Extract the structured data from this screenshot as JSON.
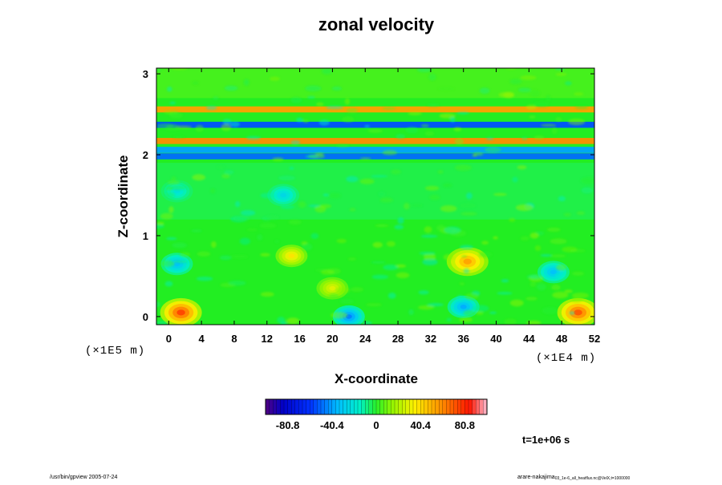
{
  "chart_data": {
    "type": "heatmap",
    "title": "zonal velocity",
    "xlabel": "X-coordinate",
    "ylabel": "Z-coordinate",
    "x_scale_label": "(×1E4 m)",
    "y_scale_label": "(×1E5 m)",
    "xlim": [
      -1.5,
      52
    ],
    "ylim": [
      -0.1,
      3.07
    ],
    "x_ticks": [
      "0",
      "4",
      "8",
      "12",
      "16",
      "20",
      "24",
      "28",
      "32",
      "36",
      "40",
      "44",
      "48",
      "52"
    ],
    "y_ticks": [
      "0",
      "1",
      "2",
      "3"
    ],
    "colorbar": {
      "min": -101,
      "max": 101,
      "tick_labels": [
        "-80.8",
        "-40.4",
        "0",
        "40.4",
        "80.8"
      ],
      "tick_values": [
        -80.8,
        -40.4,
        0,
        40.4,
        80.8
      ]
    },
    "features": [
      {
        "x": 36.5,
        "z": 0.68,
        "value": 65
      },
      {
        "x": 1.5,
        "z": 0.05,
        "value": 90
      },
      {
        "x": 50,
        "z": 0.05,
        "value": 85
      },
      {
        "x": 22,
        "z": 0.0,
        "value": -55
      },
      {
        "x": 15,
        "z": 0.75,
        "value": 45
      },
      {
        "x": 20,
        "z": 0.35,
        "value": 35
      },
      {
        "x": 1,
        "z": 0.65,
        "value": -40
      },
      {
        "x": 47,
        "z": 0.55,
        "value": -40
      },
      {
        "x": 36,
        "z": 0.12,
        "value": -45
      },
      {
        "x": 14,
        "z": 1.5,
        "value": -30
      },
      {
        "x": 1,
        "z": 1.55,
        "value": -25
      }
    ],
    "bands": [
      {
        "z": 1.98,
        "value": -50
      },
      {
        "z": 2.06,
        "value": -40
      },
      {
        "z": 2.17,
        "value": 60
      },
      {
        "z": 2.37,
        "value": -55
      },
      {
        "z": 2.56,
        "value": 55
      }
    ]
  },
  "annotations": {
    "time": "t=1e+06 s",
    "footer_left": "/usr/bin/gpview 2005-07-24",
    "footer_right_main": "arare-nakajima",
    "footer_right_sub": "03_1e-6_all_heatflux.nc@VelX,t=1000000"
  }
}
